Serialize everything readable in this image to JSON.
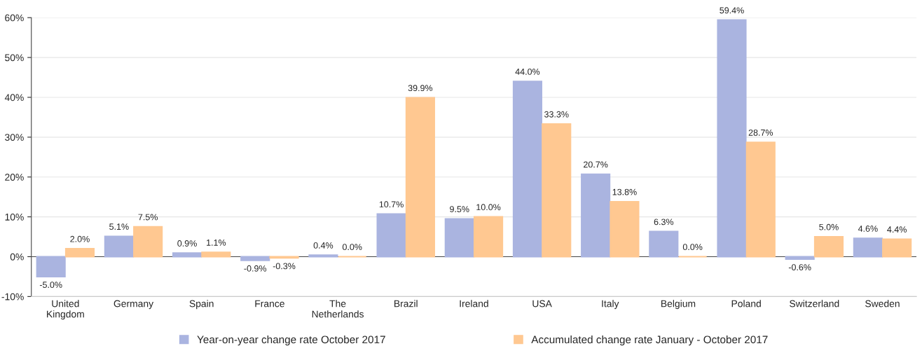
{
  "chart_data": {
    "type": "bar",
    "categories": [
      "United\nKingdom",
      "Germany",
      "Spain",
      "France",
      "The\nNetherlands",
      "Brazil",
      "Ireland",
      "USA",
      "Italy",
      "Belgium",
      "Poland",
      "Switzerland",
      "Sweden"
    ],
    "series": [
      {
        "name": "Year-on-year change rate October 2017",
        "color": "#aab4e0",
        "values": [
          -5.0,
          5.1,
          0.9,
          -0.9,
          0.4,
          10.7,
          9.5,
          44.0,
          20.7,
          6.3,
          59.4,
          -0.6,
          4.6
        ],
        "value_labels": [
          "-5.0%",
          "5.1%",
          "0.9%",
          "-0.9%",
          "0.4%",
          "10.7%",
          "9.5%",
          "44.0%",
          "20.7%",
          "6.3%",
          "59.4%",
          "-0.6%",
          "4.6%"
        ]
      },
      {
        "name": "Accumulated change rate January - October 2017",
        "color": "#ffc891",
        "values": [
          2.0,
          7.5,
          1.1,
          -0.3,
          0.0,
          39.9,
          10.0,
          33.3,
          13.8,
          0.0,
          28.7,
          5.0,
          4.4
        ],
        "value_labels": [
          "2.0%",
          "7.5%",
          "1.1%",
          "-0.3%",
          "0.0%",
          "39.9%",
          "10.0%",
          "33.3%",
          "13.8%",
          "0.0%",
          "28.7%",
          "5.0%",
          "4.4%"
        ]
      }
    ],
    "ylim": [
      -10,
      60
    ],
    "yticks": [
      {
        "value": -10,
        "label": "-10%"
      },
      {
        "value": 0,
        "label": "0%"
      },
      {
        "value": 10,
        "label": "10%"
      },
      {
        "value": 20,
        "label": "20%"
      },
      {
        "value": 30,
        "label": "30%"
      },
      {
        "value": 40,
        "label": "40%"
      },
      {
        "value": 50,
        "label": "50%"
      },
      {
        "value": 60,
        "label": "60%"
      }
    ],
    "grid": "y",
    "legend": "bottom"
  }
}
